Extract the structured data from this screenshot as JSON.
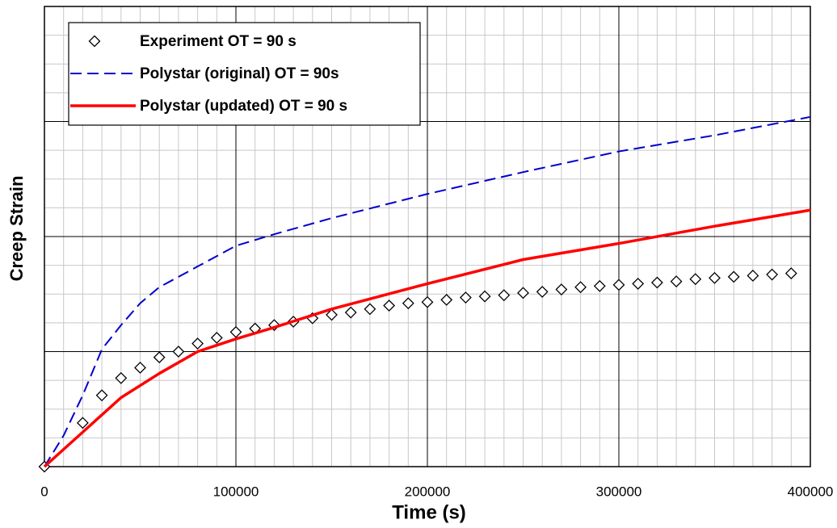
{
  "chart_data": {
    "type": "line",
    "x_label": "Time (s)",
    "y_label": "Creep Strain",
    "xlim": [
      0,
      400000
    ],
    "xticks": [
      0,
      100000,
      200000,
      300000,
      400000
    ],
    "ylim": [
      0,
      4
    ],
    "ygrid": [
      0,
      1,
      2,
      3,
      4
    ],
    "minor_grid_step": {
      "x": 10000,
      "y": 0.25
    },
    "grid": true,
    "legend": "upper left",
    "series": [
      {
        "name": "Experiment OT = 90 s",
        "color": "#000000",
        "style": "markers",
        "x": [
          0,
          20000,
          30000,
          40000,
          50000,
          60000,
          70000,
          80000,
          90000,
          100000,
          110000,
          120000,
          130000,
          140000,
          150000,
          160000,
          170000,
          180000,
          190000,
          200000,
          210000,
          220000,
          230000,
          240000,
          250000,
          260000,
          270000,
          280000,
          290000,
          300000,
          310000,
          320000,
          330000,
          340000,
          350000,
          360000,
          370000,
          380000,
          390000
        ],
        "values": [
          0,
          0.38,
          0.62,
          0.77,
          0.86,
          0.95,
          1.0,
          1.07,
          1.12,
          1.17,
          1.2,
          1.23,
          1.26,
          1.29,
          1.32,
          1.34,
          1.37,
          1.4,
          1.42,
          1.43,
          1.45,
          1.47,
          1.48,
          1.49,
          1.51,
          1.52,
          1.54,
          1.56,
          1.57,
          1.58,
          1.59,
          1.6,
          1.61,
          1.63,
          1.64,
          1.65,
          1.66,
          1.67,
          1.68
        ]
      },
      {
        "name": "Polystar (original) OT = 90s",
        "color": "#0000cc",
        "style": "dashed",
        "x": [
          0,
          10000,
          20000,
          30000,
          40000,
          50000,
          60000,
          80000,
          100000,
          120000,
          150000,
          200000,
          250000,
          300000,
          350000,
          400000
        ],
        "values": [
          0,
          0.27,
          0.62,
          1.02,
          1.23,
          1.42,
          1.56,
          1.74,
          1.92,
          2.02,
          2.16,
          2.37,
          2.56,
          2.74,
          2.88,
          3.04
        ]
      },
      {
        "name": "Polystar (updated) OT = 90 s",
        "color": "#ff0000",
        "style": "solid",
        "x": [
          0,
          20000,
          40000,
          60000,
          80000,
          100000,
          120000,
          150000,
          200000,
          250000,
          300000,
          350000,
          400000
        ],
        "values": [
          0,
          0.3,
          0.6,
          0.81,
          1.0,
          1.11,
          1.21,
          1.37,
          1.59,
          1.8,
          1.94,
          2.09,
          2.23
        ]
      }
    ]
  }
}
